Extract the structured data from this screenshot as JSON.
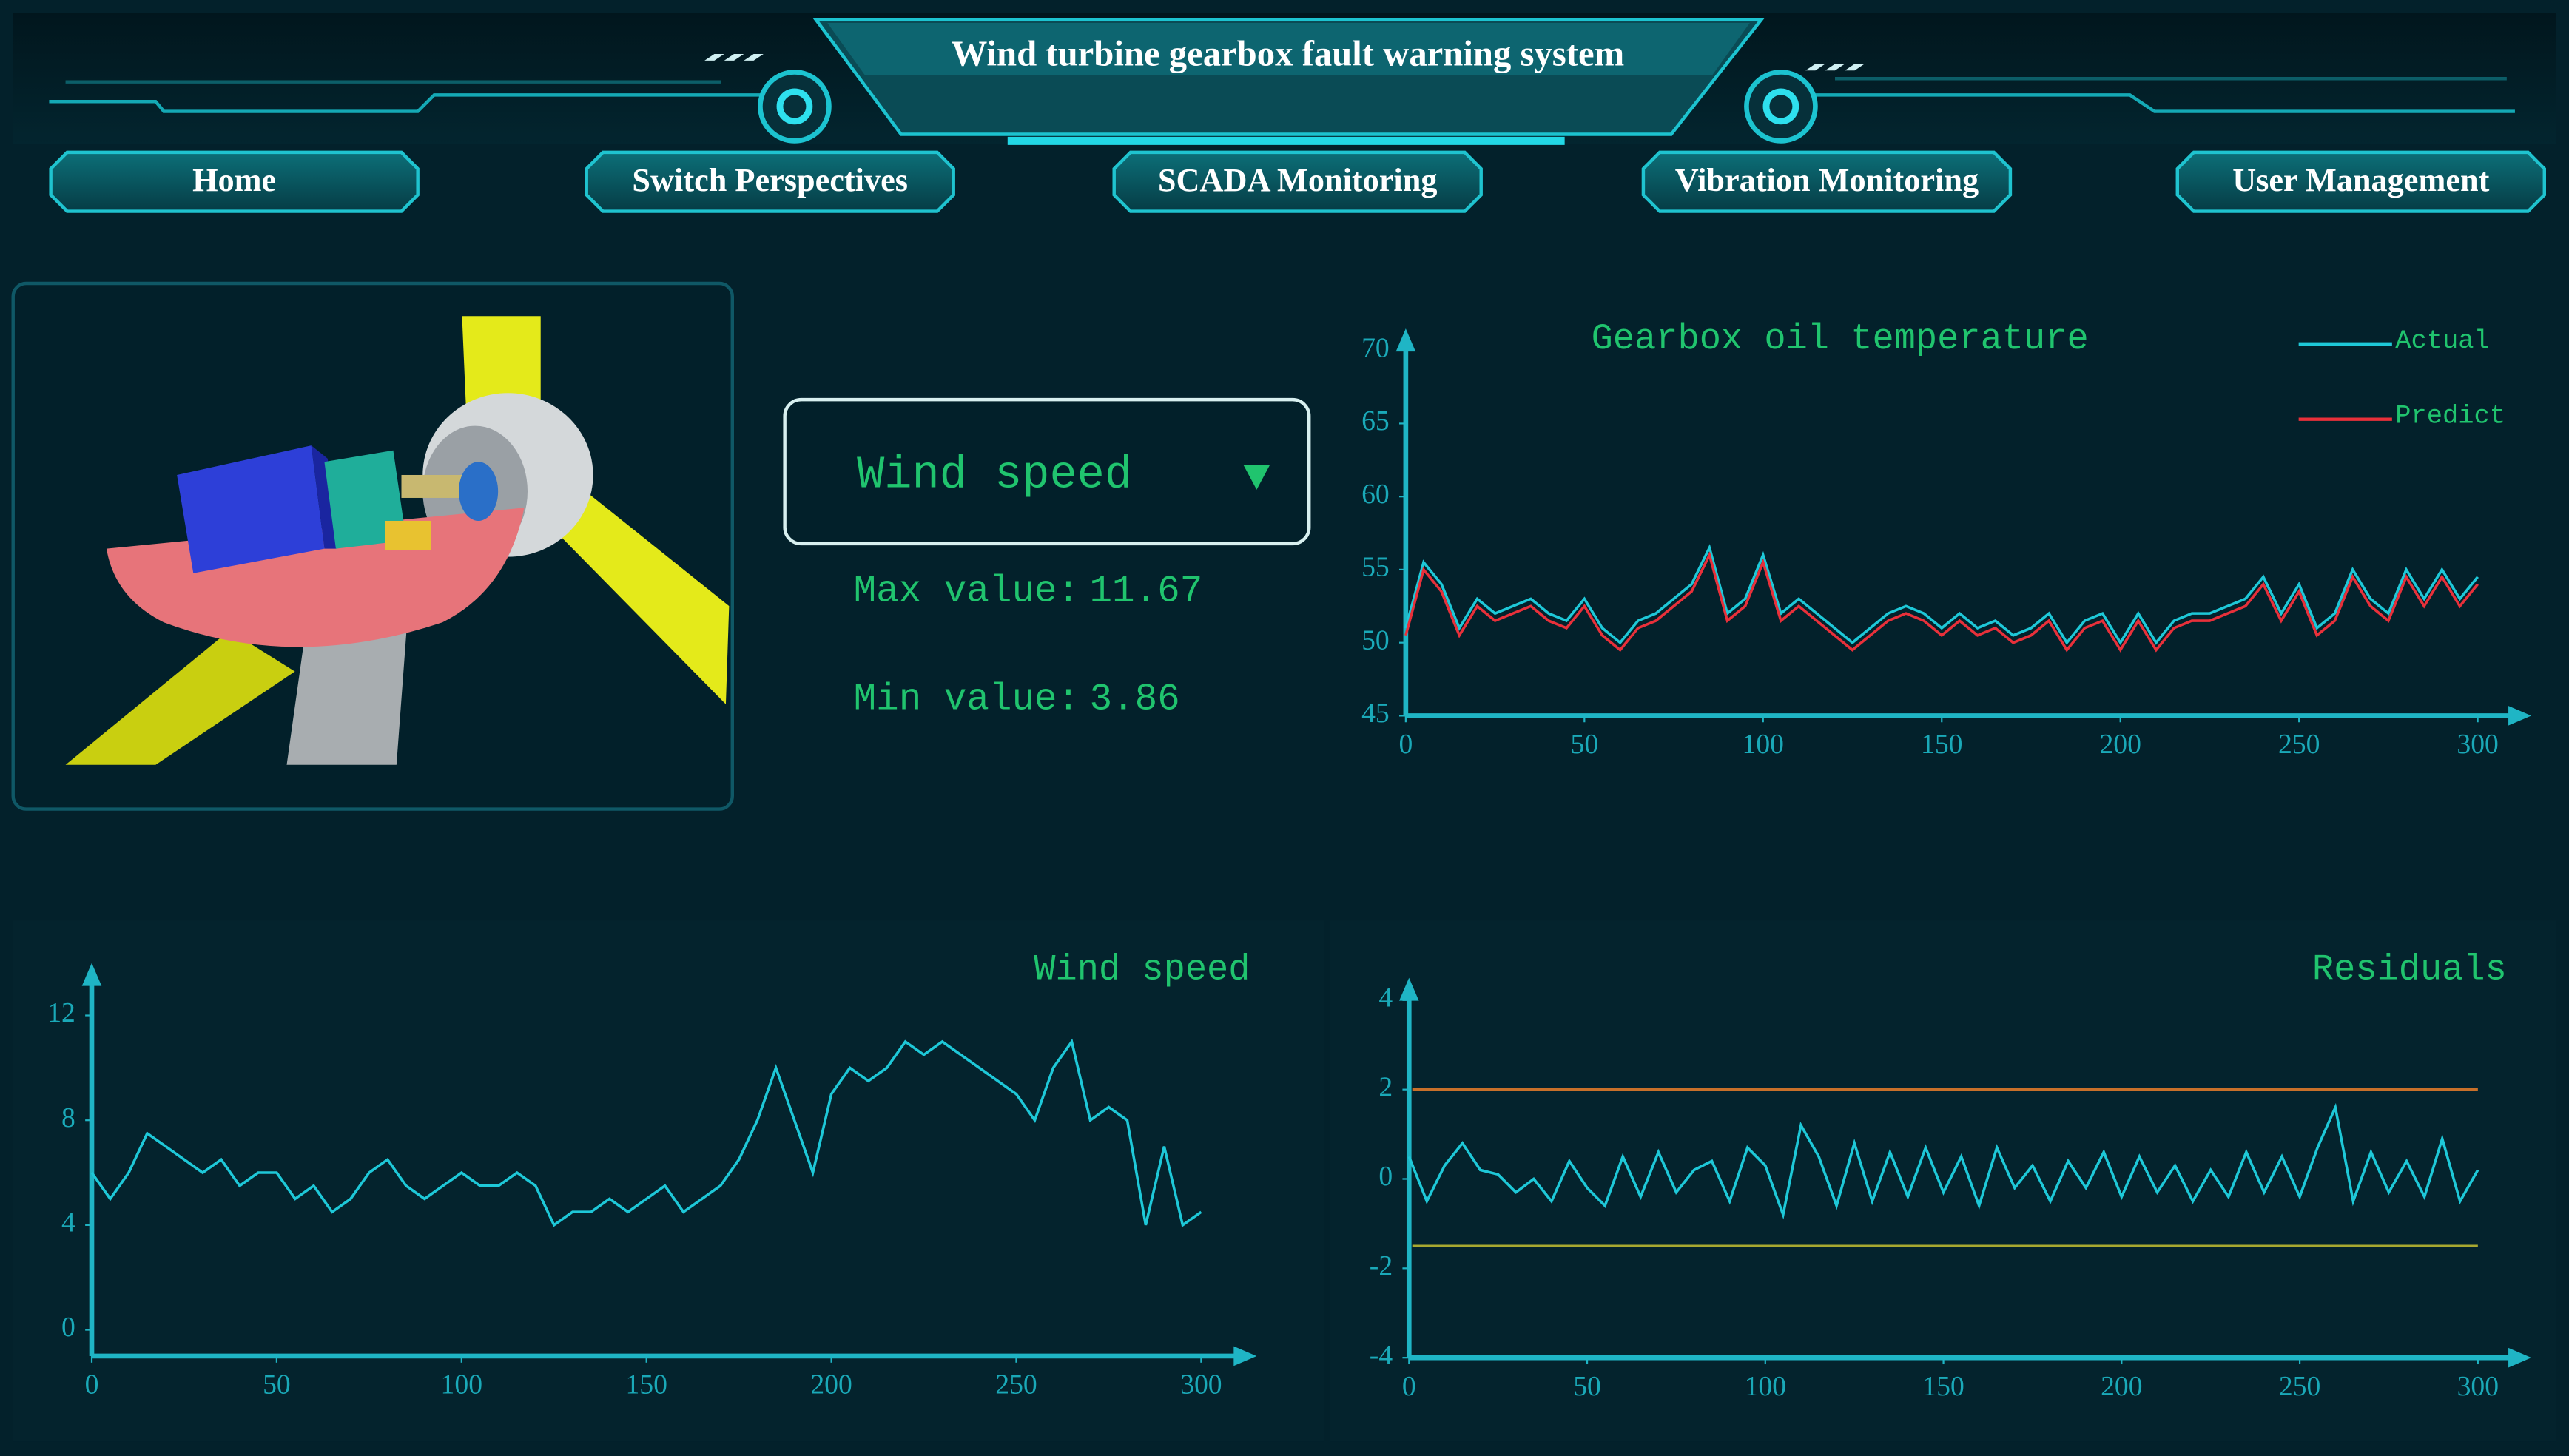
{
  "header": {
    "title": "Wind turbine gearbox fault warning system"
  },
  "nav": [
    "Home",
    "Switch Perspectives",
    "SCADA Monitoring",
    "Vibration Monitoring",
    "User Management"
  ],
  "selector": {
    "label": "Wind speed"
  },
  "stats": {
    "max_label": "Max value:",
    "max_value": 11.67,
    "min_label": "Min value:",
    "min_value": 3.86
  },
  "chart_data": [
    {
      "type": "line",
      "title": "Gearbox oil temperature",
      "legend": "upper right",
      "x": [
        0,
        5,
        10,
        15,
        20,
        25,
        30,
        35,
        40,
        45,
        50,
        55,
        60,
        65,
        70,
        75,
        80,
        85,
        90,
        95,
        100,
        105,
        110,
        115,
        120,
        125,
        130,
        135,
        140,
        145,
        150,
        155,
        160,
        165,
        170,
        175,
        180,
        185,
        190,
        195,
        200,
        205,
        210,
        215,
        220,
        225,
        230,
        235,
        240,
        245,
        250,
        255,
        260,
        265,
        270,
        275,
        280,
        285,
        290,
        295,
        300
      ],
      "series": [
        {
          "name": "Actual",
          "color": "#1ec8d8",
          "values": [
            51,
            55.5,
            54,
            51,
            53,
            52,
            52.5,
            53,
            52,
            51.5,
            53,
            51,
            50,
            51.5,
            52,
            53,
            54,
            56.5,
            52,
            53,
            56,
            52,
            53,
            52,
            51,
            50,
            51,
            52,
            52.5,
            52,
            51,
            52,
            51,
            51.5,
            50.5,
            51,
            52,
            50,
            51.5,
            52,
            50,
            52,
            50,
            51.5,
            52,
            52,
            52.5,
            53,
            54.5,
            52,
            54,
            51,
            52,
            55,
            53,
            52,
            55,
            53,
            55,
            53,
            54.5
          ]
        },
        {
          "name": "Predict",
          "color": "#e8303a",
          "values": [
            50.5,
            55,
            53.5,
            50.5,
            52.5,
            51.5,
            52,
            52.5,
            51.5,
            51,
            52.5,
            50.5,
            49.5,
            51,
            51.5,
            52.5,
            53.5,
            56,
            51.5,
            52.5,
            55.5,
            51.5,
            52.5,
            51.5,
            50.5,
            49.5,
            50.5,
            51.5,
            52,
            51.5,
            50.5,
            51.5,
            50.5,
            51,
            50,
            50.5,
            51.5,
            49.5,
            51,
            51.5,
            49.5,
            51.5,
            49.5,
            51,
            51.5,
            51.5,
            52,
            52.5,
            54,
            51.5,
            53.5,
            50.5,
            51.5,
            54.5,
            52.5,
            51.5,
            54.5,
            52.5,
            54.5,
            52.5,
            54
          ]
        }
      ],
      "xlim": [
        0,
        315
      ],
      "ylim": [
        45,
        71.5
      ],
      "xticks": [
        0,
        50,
        100,
        150,
        200,
        250,
        300
      ],
      "yticks": [
        45,
        50,
        55,
        60,
        65,
        70
      ]
    },
    {
      "type": "line",
      "title": "Wind speed",
      "x": [
        0,
        5,
        10,
        15,
        20,
        25,
        30,
        35,
        40,
        45,
        50,
        55,
        60,
        65,
        70,
        75,
        80,
        85,
        90,
        95,
        100,
        105,
        110,
        115,
        120,
        125,
        130,
        135,
        140,
        145,
        150,
        155,
        160,
        165,
        170,
        175,
        180,
        185,
        190,
        195,
        200,
        205,
        210,
        215,
        220,
        225,
        230,
        235,
        240,
        245,
        250,
        255,
        260,
        265,
        270,
        275,
        280,
        285,
        290,
        295,
        300
      ],
      "series": [
        {
          "color": "#1ec8d8",
          "values": [
            6,
            5,
            6,
            7.5,
            7,
            6.5,
            6,
            6.5,
            5.5,
            6,
            6,
            5,
            5.5,
            4.5,
            5,
            6,
            6.5,
            5.5,
            5,
            5.5,
            6,
            5.5,
            5.5,
            6,
            5.5,
            4,
            4.5,
            4.5,
            5,
            4.5,
            5,
            5.5,
            4.5,
            5,
            5.5,
            6.5,
            8,
            10,
            8,
            6,
            9,
            10,
            9.5,
            10,
            11,
            10.5,
            11,
            10.5,
            10,
            9.5,
            9,
            8,
            10,
            11,
            8,
            8.5,
            8,
            4,
            7,
            4,
            4.5
          ]
        }
      ],
      "xlim": [
        0,
        315
      ],
      "ylim": [
        -1,
        14
      ],
      "xticks": [
        0,
        50,
        100,
        150,
        200,
        250,
        300
      ],
      "yticks": [
        0,
        4,
        8,
        12
      ]
    },
    {
      "type": "line",
      "title": "Residuals",
      "x": [
        0,
        5,
        10,
        15,
        20,
        25,
        30,
        35,
        40,
        45,
        50,
        55,
        60,
        65,
        70,
        75,
        80,
        85,
        90,
        95,
        100,
        105,
        110,
        115,
        120,
        125,
        130,
        135,
        140,
        145,
        150,
        155,
        160,
        165,
        170,
        175,
        180,
        185,
        190,
        195,
        200,
        205,
        210,
        215,
        220,
        225,
        230,
        235,
        240,
        245,
        250,
        255,
        260,
        265,
        270,
        275,
        280,
        285,
        290,
        295,
        300
      ],
      "series": [
        {
          "color": "#1ec8d8",
          "values": [
            0.5,
            -0.5,
            0.3,
            0.8,
            0.2,
            0.1,
            -0.3,
            0,
            -0.5,
            0.4,
            -0.2,
            -0.6,
            0.5,
            -0.4,
            0.6,
            -0.3,
            0.2,
            0.4,
            -0.5,
            0.7,
            0.3,
            -0.8,
            1.2,
            0.5,
            -0.6,
            0.8,
            -0.5,
            0.6,
            -0.4,
            0.7,
            -0.3,
            0.5,
            -0.6,
            0.7,
            -0.2,
            0.3,
            -0.5,
            0.4,
            -0.2,
            0.6,
            -0.4,
            0.5,
            -0.3,
            0.3,
            -0.5,
            0.2,
            -0.4,
            0.6,
            -0.3,
            0.5,
            -0.4,
            0.7,
            1.6,
            -0.5,
            0.6,
            -0.3,
            0.4,
            -0.4,
            0.9,
            -0.5,
            0.2
          ]
        }
      ],
      "thresholds": [
        {
          "value": 2,
          "color": "#c8702a"
        },
        {
          "value": -1.5,
          "color": "#a8a830"
        }
      ],
      "xlim": [
        0,
        315
      ],
      "ylim": [
        -4,
        4.5
      ],
      "xticks": [
        0,
        50,
        100,
        150,
        200,
        250,
        300
      ],
      "yticks": [
        -4,
        -2,
        0,
        2,
        4
      ]
    }
  ]
}
